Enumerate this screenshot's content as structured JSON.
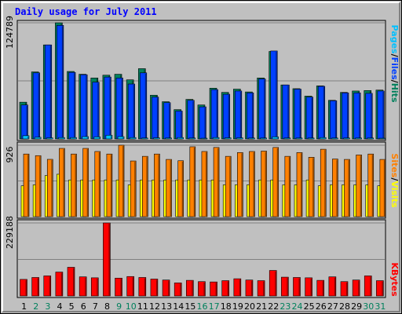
{
  "title": "Daily usage for July 2011",
  "colors": {
    "hits": "#00805c",
    "files": "#0040ff",
    "pages": "#00c0ff",
    "visits": "#ffff00",
    "sites": "#ff8000",
    "kbytes": "#ff0000",
    "weekend_label": "#00805c",
    "weekday_label": "#000000",
    "grid": "#808080"
  },
  "chart_data": [
    {
      "type": "bar",
      "name": "hits-files-pages",
      "max_label": "124789",
      "ylim": [
        0,
        124789
      ],
      "legend": [
        "Pages",
        "Files",
        "Hits"
      ],
      "categories": [
        "1",
        "2",
        "3",
        "4",
        "5",
        "6",
        "7",
        "8",
        "9",
        "10",
        "11",
        "12",
        "13",
        "14",
        "15",
        "16",
        "17",
        "18",
        "19",
        "20",
        "21",
        "22",
        "23",
        "24",
        "25",
        "26",
        "27",
        "28",
        "29",
        "30",
        "31"
      ],
      "weekend_days": [
        2,
        3,
        9,
        10,
        16,
        17,
        23,
        24,
        30,
        31
      ],
      "series": [
        {
          "name": "Hits",
          "values": [
            39500,
            72000,
            101000,
            124789,
            72500,
            69500,
            65500,
            68500,
            69500,
            63500,
            75500,
            47000,
            40000,
            31500,
            42500,
            36500,
            54500,
            50000,
            53500,
            50500,
            65500,
            94000,
            58000,
            54000,
            46000,
            57000,
            41500,
            50000,
            51500,
            52000,
            52500
          ]
        },
        {
          "name": "Files",
          "values": [
            36500,
            71000,
            101000,
            122000,
            71500,
            69000,
            61000,
            66500,
            65500,
            59000,
            71000,
            45000,
            39000,
            30000,
            41500,
            34500,
            53000,
            48000,
            51500,
            49500,
            64500,
            94500,
            58000,
            53500,
            45000,
            56500,
            41000,
            49500,
            49500,
            49000,
            51500
          ]
        },
        {
          "name": "Pages",
          "values": [
            3500,
            1800,
            1200,
            1500,
            1500,
            2500,
            2200,
            4000,
            2500,
            1500,
            1000,
            1200,
            1000,
            1500,
            1000,
            800,
            1500,
            1200,
            1200,
            1000,
            1000,
            2200,
            1000,
            1000,
            1000,
            1500,
            1000,
            1000,
            1000,
            1000,
            800
          ]
        }
      ]
    },
    {
      "type": "bar",
      "name": "visits-sites",
      "max_label": "926",
      "ylim": [
        0,
        926
      ],
      "legend": [
        "Sites",
        "Visits"
      ],
      "series": [
        {
          "name": "Sites",
          "values": [
            812,
            791,
            743,
            885,
            812,
            885,
            845,
            812,
            926,
            722,
            782,
            812,
            742,
            725,
            906,
            845,
            897,
            782,
            831,
            845,
            850,
            897,
            782,
            831,
            770,
            874,
            747,
            742,
            800,
            812,
            742
          ]
        },
        {
          "name": "Visits",
          "values": [
            400,
            413,
            533,
            550,
            476,
            476,
            476,
            476,
            476,
            412,
            476,
            476,
            476,
            476,
            476,
            476,
            476,
            413,
            413,
            413,
            476,
            476,
            413,
            413,
            476,
            400,
            413,
            413,
            413,
            413,
            400
          ]
        }
      ]
    },
    {
      "type": "bar",
      "name": "kbytes",
      "max_label": "229188",
      "ylim": [
        0,
        229188
      ],
      "legend": [
        "KBytes"
      ],
      "series": [
        {
          "name": "KBytes",
          "values": [
            52000,
            58000,
            63000,
            75000,
            90000,
            60000,
            57000,
            229188,
            56000,
            61000,
            58000,
            53000,
            50000,
            41000,
            49000,
            45000,
            44000,
            48000,
            54000,
            50000,
            48000,
            80000,
            59000,
            58000,
            57000,
            49000,
            60000,
            45000,
            50000,
            63000,
            48000
          ]
        }
      ]
    }
  ]
}
